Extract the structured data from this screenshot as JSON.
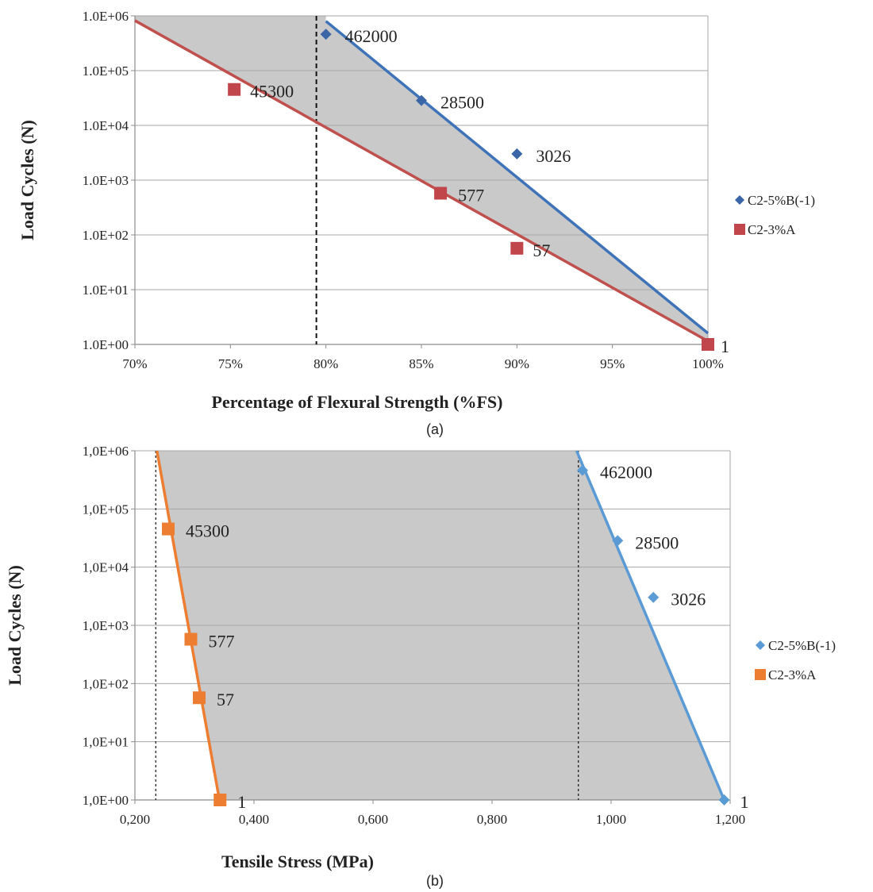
{
  "chart_data": [
    {
      "type": "scatter",
      "caption": "(a)",
      "xlabel": "Percentage of Flexural Strength (%FS)",
      "ylabel": "Load Cycles (N)",
      "xlim": [
        70,
        100
      ],
      "ylim": [
        1,
        1000000
      ],
      "yscale": "log",
      "x_ticks": [
        "70%",
        "75%",
        "80%",
        "85%",
        "90%",
        "95%",
        "100%"
      ],
      "x_tick_values": [
        70,
        75,
        80,
        85,
        90,
        95,
        100
      ],
      "y_ticks": [
        "1.0E+00",
        "1.0E+01",
        "1.0E+02",
        "1.0E+03",
        "1.0E+04",
        "1.0E+05",
        "1.0E+06"
      ],
      "y_tick_values": [
        1,
        10,
        100,
        1000,
        10000,
        100000,
        1000000
      ],
      "grid": true,
      "legend_position": "right",
      "vline_x": 79.5,
      "series": [
        {
          "name": "C2-5%B(-1)",
          "marker": "diamond",
          "color": "#3a66a8",
          "line_color": "#3f73b8",
          "points": [
            {
              "x": 80,
              "y": 462000,
              "label": "462000"
            },
            {
              "x": 85,
              "y": 28500,
              "label": "28500"
            },
            {
              "x": 90,
              "y": 3026,
              "label": "3026"
            }
          ],
          "trend": [
            [
              80,
              800000
            ],
            [
              100,
              1.6
            ]
          ]
        },
        {
          "name": "C2-3%A",
          "marker": "square",
          "color": "#c0464b",
          "line_color": "#c0504d",
          "points": [
            {
              "x": 75.2,
              "y": 45300,
              "label": "45300"
            },
            {
              "x": 86,
              "y": 577,
              "label": "577"
            },
            {
              "x": 90,
              "y": 57,
              "label": "57"
            },
            {
              "x": 100,
              "y": 1,
              "label": "1"
            }
          ],
          "trend": [
            [
              70,
              820000
            ],
            [
              100,
              1.15
            ]
          ]
        }
      ]
    },
    {
      "type": "scatter",
      "caption": "(b)",
      "xlabel": "Tensile Stress (MPa)",
      "ylabel": "Load Cycles (N)",
      "xlim": [
        0.2,
        1.2
      ],
      "ylim": [
        1,
        1000000
      ],
      "yscale": "log",
      "x_ticks": [
        "0,200",
        "0,400",
        "0,600",
        "0,800",
        "1,000",
        "1,200"
      ],
      "x_tick_values": [
        0.2,
        0.4,
        0.6,
        0.8,
        1.0,
        1.2
      ],
      "y_ticks": [
        "1,0E+00",
        "1,0E+01",
        "1,0E+02",
        "1,0E+03",
        "1,0E+04",
        "1,0E+05",
        "1,0E+06"
      ],
      "y_tick_values": [
        1,
        10,
        100,
        1000,
        10000,
        100000,
        1000000
      ],
      "grid": true,
      "legend_position": "right",
      "vlines_x": [
        0.235,
        0.945
      ],
      "series": [
        {
          "name": "C2-5%B(-1)",
          "marker": "diamond",
          "color": "#5b9bd5",
          "line_color": "#5b9bd5",
          "points": [
            {
              "x": 0.952,
              "y": 462000,
              "label": "462000"
            },
            {
              "x": 1.011,
              "y": 28500,
              "label": "28500"
            },
            {
              "x": 1.071,
              "y": 3026,
              "label": "3026"
            },
            {
              "x": 1.19,
              "y": 1,
              "label": "1"
            }
          ],
          "trend": [
            [
              0.942,
              1000000
            ],
            [
              1.19,
              1
            ]
          ]
        },
        {
          "name": "C2-3%A",
          "marker": "square",
          "color": "#ed7d31",
          "line_color": "#ed7d31",
          "points": [
            {
              "x": 0.256,
              "y": 45300,
              "label": "45300"
            },
            {
              "x": 0.294,
              "y": 577,
              "label": "577"
            },
            {
              "x": 0.308,
              "y": 57,
              "label": "57"
            },
            {
              "x": 0.343,
              "y": 1,
              "label": "1"
            }
          ],
          "trend": [
            [
              0.237,
              1000000
            ],
            [
              0.342,
              1
            ]
          ]
        }
      ]
    }
  ]
}
